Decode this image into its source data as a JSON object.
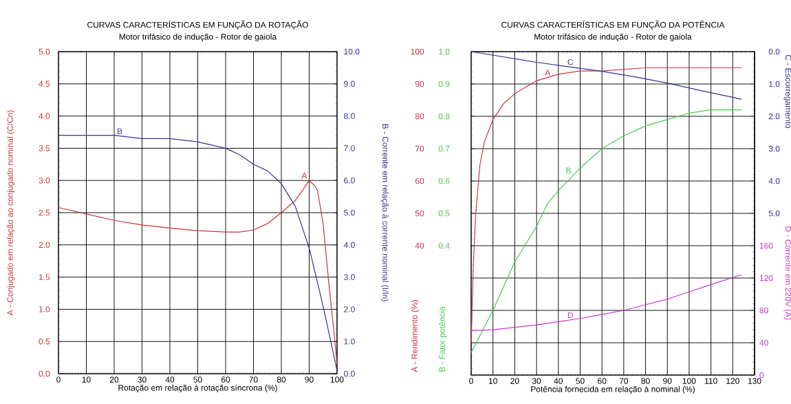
{
  "chart_data": [
    {
      "type": "line",
      "title": "CURVAS CARACTERÍSTICAS EM FUNÇÃO DA ROTAÇÃO",
      "subtitle": "Motor trifásico de indução - Rotor de gaiola",
      "xlabel": "Rotação em relação à rotação síncrona (%)",
      "ylabel": "A - Conjugado em relação ao conjugado nominal (C/Cn)",
      "y2label": "B - Corrente em relação à corrente nominal (I/In)",
      "xlim": [
        0,
        100
      ],
      "xticks": [
        0,
        10,
        20,
        30,
        40,
        50,
        60,
        70,
        80,
        90,
        100
      ],
      "ylim": [
        0,
        5
      ],
      "yticks": [
        {
          "value": 0,
          "label": "0.0"
        },
        0.5,
        {
          "value": 1,
          "label": "1.0"
        },
        1.5,
        {
          "value": 2,
          "label": "2.0"
        },
        2.5,
        {
          "value": 3,
          "label": "3.0"
        },
        3.5,
        {
          "value": 4,
          "label": "4.0"
        },
        4.5,
        {
          "value": 5,
          "label": "5.0"
        }
      ],
      "y2lim": [
        0,
        10
      ],
      "y2ticks": [
        {
          "value": 0,
          "label": "0.0"
        },
        {
          "value": 1,
          "label": "1.0"
        },
        {
          "value": 2,
          "label": "2.0"
        },
        {
          "value": 3,
          "label": "3.0"
        },
        {
          "value": 4,
          "label": "4.0"
        },
        {
          "value": 5,
          "label": "5.0"
        },
        {
          "value": 6,
          "label": "6.0"
        },
        {
          "value": 7,
          "label": "7.0"
        },
        {
          "value": 8,
          "label": "8.0"
        },
        {
          "value": 9,
          "label": "9.0"
        },
        {
          "value": 10,
          "label": "10.0"
        }
      ],
      "grid": true,
      "series": [
        {
          "name": "A",
          "color": "#cc3333",
          "x": [
            0,
            10,
            20,
            30,
            40,
            50,
            60,
            65,
            70,
            75,
            80,
            85,
            88,
            90,
            92,
            93,
            95,
            97,
            99,
            100
          ],
          "values": [
            2.58,
            2.48,
            2.38,
            2.31,
            2.26,
            2.22,
            2.2,
            2.2,
            2.23,
            2.33,
            2.5,
            2.69,
            2.87,
            3.0,
            2.92,
            2.84,
            2.33,
            1.43,
            0.6,
            0.15
          ]
        },
        {
          "name": "B",
          "color": "#333399",
          "axis": "y2",
          "x": [
            0,
            10,
            20,
            30,
            40,
            50,
            60,
            65,
            70,
            75,
            80,
            85,
            90,
            95,
            100
          ],
          "values": [
            7.4,
            7.4,
            7.4,
            7.3,
            7.3,
            7.2,
            7.0,
            6.8,
            6.5,
            6.3,
            5.9,
            5.2,
            3.9,
            2.1,
            0.1
          ]
        }
      ]
    },
    {
      "type": "line",
      "title": "CURVAS CARACTERÍSTICAS EM FUNÇÃO DA POTÊNCIA",
      "subtitle": "Motor trifásico de indução - Rotor de gaiola",
      "xlabel": "Potência fornecida em relação à nominal (%)",
      "ylabel": "A - Rendimento (%)",
      "y2label": "B - Fator potência",
      "y3label": "C - Escorregamento",
      "xlim": [
        0,
        130
      ],
      "xticks": [
        0,
        10,
        20,
        30,
        40,
        50,
        60,
        70,
        80,
        90,
        100,
        110,
        120,
        130
      ],
      "ylim": [
        0,
        100
      ],
      "yticks": [
        {
          "value": 0,
          "label": null
        },
        {
          "value": 10,
          "label": null
        },
        {
          "value": 20,
          "label": null
        },
        {
          "value": 30,
          "label": null
        },
        40,
        50,
        60,
        70,
        80,
        90,
        100
      ],
      "y2lim": [
        0,
        1
      ],
      "y2ticks": [
        0.4,
        0.5,
        0.6,
        0.7,
        0.8,
        0.9,
        {
          "value": 1,
          "label": "1.0"
        }
      ],
      "y3lim": [
        10,
        0
      ],
      "y3ticks": [
        {
          "value": 0,
          "label": "0.0"
        },
        {
          "value": 1,
          "label": "1.0"
        },
        {
          "value": 2,
          "label": "2.0"
        },
        {
          "value": 3,
          "label": "3.0"
        },
        {
          "value": 4,
          "label": "4.0"
        },
        {
          "value": 5,
          "label": "5.0"
        }
      ],
      "grid": true,
      "series": [
        {
          "name": "A",
          "color": "#cc3344",
          "x": [
            0,
            1,
            2,
            4,
            6,
            10,
            15,
            20,
            30,
            40,
            50,
            60,
            80,
            100,
            124
          ],
          "values": [
            10,
            34,
            49,
            65,
            72,
            79,
            84,
            87,
            91,
            93,
            94,
            94,
            95,
            95,
            95
          ]
        },
        {
          "name": "B",
          "color": "#44cc44",
          "axis": "y2",
          "x": [
            0,
            10,
            20,
            30,
            35,
            40,
            50,
            60,
            70,
            80,
            90,
            100,
            110,
            124
          ],
          "values": [
            0.07,
            0.2,
            0.35,
            0.46,
            0.53,
            0.57,
            0.64,
            0.7,
            0.74,
            0.77,
            0.79,
            0.81,
            0.82,
            0.82
          ]
        },
        {
          "name": "C",
          "color": "#333399",
          "axis": "y3",
          "x": [
            0,
            30,
            45,
            60,
            75,
            90,
            105,
            124
          ],
          "values": [
            0,
            0.33,
            0.47,
            0.61,
            0.78,
            0.97,
            1.2,
            1.47
          ]
        }
      ]
    },
    {
      "type": "line",
      "ylabel": "D - Corrente em  220V (A)",
      "xlim": [
        0,
        130
      ],
      "ylim": [
        0,
        400
      ],
      "yticks": [
        0,
        40,
        80,
        120,
        160
      ],
      "tick_labels": "y",
      "series": [
        {
          "name": "D",
          "color": "#cc33cc",
          "x": [
            0,
            10,
            20,
            30,
            40,
            50,
            60,
            70,
            80,
            90,
            100,
            110,
            124
          ],
          "values": [
            55,
            56,
            59,
            62,
            66,
            70,
            75,
            80,
            87,
            94,
            103,
            112,
            124
          ]
        }
      ]
    }
  ]
}
